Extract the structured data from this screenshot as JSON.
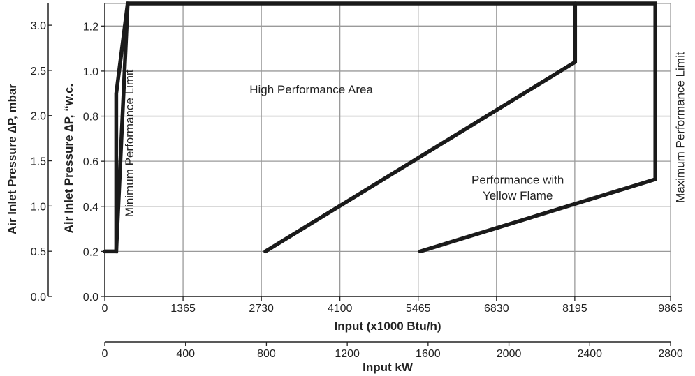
{
  "chart_data": {
    "type": "line",
    "x_axis_primary": {
      "label": "Input (x1000 Btu/h)",
      "ticks": [
        0,
        1365,
        2730,
        4100,
        5465,
        6830,
        8195,
        9865
      ],
      "range": [
        0,
        9865
      ]
    },
    "x_axis_secondary": {
      "label": "Input kW",
      "ticks": [
        0,
        400,
        800,
        1200,
        1600,
        2000,
        2400,
        2800
      ],
      "range": [
        0,
        2800
      ]
    },
    "y_axis_primary": {
      "label": "Air Inlet Pressure ∆P, “w.c.",
      "ticks": [
        "0.0",
        "0.2",
        "0.4",
        "0.6",
        "0.8",
        "1.0",
        "1.2"
      ],
      "range": [
        0,
        1.3
      ]
    },
    "y_axis_secondary": {
      "label": "Air Inlet Pressure ∆P, mbar",
      "ticks": [
        "0.0",
        "0.5",
        "1.0",
        "1.5",
        "2.0",
        "2.5",
        "3.0"
      ],
      "range": [
        0,
        3.24
      ]
    },
    "grid": true,
    "series": [
      {
        "role": "outer-boundary",
        "x": [
          0,
          200,
          400,
          9600,
          9600,
          5500
        ],
        "y": [
          0.2,
          0.2,
          1.3,
          1.3,
          0.52,
          0.2
        ],
        "closed": false
      },
      {
        "role": "left-boundary",
        "x": [
          200,
          200,
          400
        ],
        "y": [
          0.2,
          0.9,
          1.3
        ]
      },
      {
        "role": "high-performance-boundary",
        "x": [
          2800,
          8200,
          8200
        ],
        "y": [
          0.2,
          1.04,
          1.3
        ]
      }
    ],
    "annotations": [
      {
        "text": "High Performance Area",
        "x": 3600,
        "y": 0.9
      },
      {
        "text": "Performance with",
        "x": 7200,
        "y": 0.5
      },
      {
        "text": "Yellow Flame",
        "x": 7200,
        "y": 0.43
      },
      {
        "text": "Minimum Performance Limit",
        "x": 500,
        "y": 0.68,
        "vertical": true
      },
      {
        "text": "Maximum Performance Limit",
        "x": 10100,
        "y": 0.75,
        "vertical": true
      }
    ]
  }
}
